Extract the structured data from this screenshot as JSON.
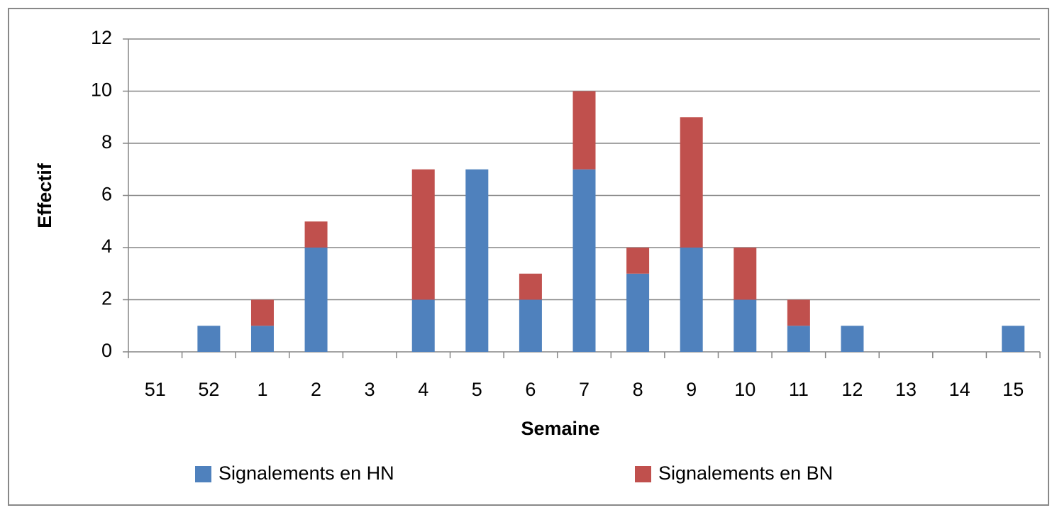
{
  "chart_data": {
    "type": "stacked_bar",
    "x_label": "Semaine",
    "y_label": "Effectif",
    "categories": [
      "51",
      "52",
      "1",
      "2",
      "3",
      "4",
      "5",
      "6",
      "7",
      "8",
      "9",
      "10",
      "11",
      "12",
      "13",
      "14",
      "15"
    ],
    "series": [
      {
        "name": "Signalements en HN",
        "color": "#4f81bd",
        "values": [
          0,
          1,
          1,
          4,
          0,
          2,
          7,
          2,
          7,
          3,
          4,
          2,
          1,
          1,
          0,
          0,
          1
        ]
      },
      {
        "name": "Signalements en BN",
        "color": "#c0504d",
        "values": [
          0,
          0,
          1,
          1,
          0,
          5,
          0,
          1,
          3,
          1,
          5,
          2,
          1,
          0,
          0,
          0,
          0
        ]
      }
    ],
    "ylim": [
      0,
      12
    ],
    "yticks": [
      0,
      2,
      4,
      6,
      8,
      10,
      12
    ],
    "grid": true,
    "legend": "bottom"
  }
}
